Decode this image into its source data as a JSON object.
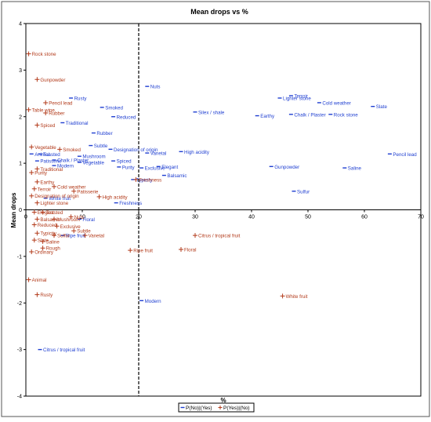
{
  "chart_data": {
    "type": "scatter",
    "title": "Mean drops vs %",
    "xlabel": "%",
    "ylabel": "Mean drops",
    "xlim": [
      0,
      70
    ],
    "ylim": [
      -4,
      4
    ],
    "xticks": [
      0,
      10,
      20,
      30,
      40,
      50,
      60,
      70
    ],
    "yticks": [
      -4,
      -3,
      -2,
      -1,
      0,
      1,
      2,
      3,
      4
    ],
    "grid": false,
    "vertical_reference_line": {
      "x": 20,
      "style": "dashed"
    },
    "legend_placement": "bottom-center",
    "series": [
      {
        "name": "P(No)|(Yes)",
        "color": "#1f3fd1",
        "marker": "dash",
        "points": [
          {
            "label": "Terroir",
            "x": 47.0,
            "y": 2.45
          },
          {
            "label": "Nuts",
            "x": 21.5,
            "y": 2.65
          },
          {
            "label": "Rusty",
            "x": 8.0,
            "y": 2.4
          },
          {
            "label": "Lighter stone",
            "x": 45.0,
            "y": 2.4
          },
          {
            "label": "Cold weather",
            "x": 52.0,
            "y": 2.3
          },
          {
            "label": "Slate",
            "x": 61.5,
            "y": 2.22
          },
          {
            "label": "Smoked",
            "x": 13.5,
            "y": 2.2
          },
          {
            "label": "Silex / shale",
            "x": 30.0,
            "y": 2.1
          },
          {
            "label": "Reduced",
            "x": 15.5,
            "y": 2.0
          },
          {
            "label": "Earthy",
            "x": 41.0,
            "y": 2.02
          },
          {
            "label": "Chalk / Plaster",
            "x": 47.0,
            "y": 2.05
          },
          {
            "label": "Rock stone",
            "x": 54.0,
            "y": 2.05
          },
          {
            "label": "Traditional",
            "x": 6.5,
            "y": 1.87
          },
          {
            "label": "Rubber",
            "x": 12.0,
            "y": 1.65
          },
          {
            "label": "Subtle",
            "x": 11.5,
            "y": 1.38
          },
          {
            "label": "Designation of origin",
            "x": 15.0,
            "y": 1.3
          },
          {
            "label": "High acidity",
            "x": 27.5,
            "y": 1.25
          },
          {
            "label": "Vanetal",
            "x": 21.5,
            "y": 1.22
          },
          {
            "label": "Pencil lead",
            "x": 64.5,
            "y": 1.2
          },
          {
            "label": "Animal",
            "x": 1.0,
            "y": 1.2
          },
          {
            "label": "Toasted",
            "x": 2.5,
            "y": 1.2
          },
          {
            "label": "Mushroom",
            "x": 9.5,
            "y": 1.15
          },
          {
            "label": "Patisserie",
            "x": 2.0,
            "y": 1.05
          },
          {
            "label": "Chalk / Plaster",
            "x": 5.0,
            "y": 1.07
          },
          {
            "label": "Vegetable",
            "x": 9.5,
            "y": 1.02
          },
          {
            "label": "Spiced",
            "x": 15.5,
            "y": 1.05
          },
          {
            "label": "Modern",
            "x": 5.0,
            "y": 0.95
          },
          {
            "label": "Purity",
            "x": 16.5,
            "y": 0.92
          },
          {
            "label": "Elegant",
            "x": 23.5,
            "y": 0.93
          },
          {
            "label": "Gunpowder",
            "x": 43.5,
            "y": 0.93
          },
          {
            "label": "Saline",
            "x": 56.5,
            "y": 0.9
          },
          {
            "label": "Exclusive",
            "x": 20.5,
            "y": 0.9
          },
          {
            "label": "Balsamic",
            "x": 24.5,
            "y": 0.74
          },
          {
            "label": "Typicity",
            "x": 19.0,
            "y": 0.65
          },
          {
            "label": "Sulfur",
            "x": 47.5,
            "y": 0.4
          },
          {
            "label": "White fruit",
            "x": 3.5,
            "y": 0.25
          },
          {
            "label": "Freshness",
            "x": 16.0,
            "y": 0.15
          },
          {
            "label": "Floral",
            "x": 9.5,
            "y": -0.2
          },
          {
            "label": "Ripe fruit",
            "x": 6.5,
            "y": -0.55
          },
          {
            "label": "Modern",
            "x": 20.5,
            "y": -1.95
          },
          {
            "label": "Citrus / tropical fruit",
            "x": 2.5,
            "y": -3.0
          }
        ]
      },
      {
        "name": "P(Yes)|(No)",
        "color": "#b23a1a",
        "marker": "cross",
        "points": [
          {
            "label": "Rock stone",
            "x": 0.5,
            "y": 3.35
          },
          {
            "label": "Gunpowder",
            "x": 2.0,
            "y": 2.8
          },
          {
            "label": "Pencil lead",
            "x": 3.5,
            "y": 2.3
          },
          {
            "label": "Table wine",
            "x": 0.5,
            "y": 2.15
          },
          {
            "label": "Rubber",
            "x": 3.5,
            "y": 2.08
          },
          {
            "label": "Spiced",
            "x": 2.0,
            "y": 1.82
          },
          {
            "label": "Vegetable",
            "x": 1.0,
            "y": 1.35
          },
          {
            "label": "Smoked",
            "x": 6.0,
            "y": 1.3
          },
          {
            "label": "Traditional",
            "x": 2.0,
            "y": 0.88
          },
          {
            "label": "Purity",
            "x": 1.0,
            "y": 0.8
          },
          {
            "label": "Earthy",
            "x": 2.0,
            "y": 0.6
          },
          {
            "label": "Cold weather",
            "x": 5.0,
            "y": 0.5
          },
          {
            "label": "Terroir",
            "x": 1.5,
            "y": 0.45
          },
          {
            "label": "Patisserie",
            "x": 8.5,
            "y": 0.4
          },
          {
            "label": "Designation of origin",
            "x": 1.0,
            "y": 0.3
          },
          {
            "label": "High acidity",
            "x": 13.0,
            "y": 0.28
          },
          {
            "label": "Freshness",
            "x": 19.5,
            "y": 0.65
          },
          {
            "label": "Lighter stone",
            "x": 2.0,
            "y": 0.15
          },
          {
            "label": "Elegant",
            "x": 1.5,
            "y": -0.05
          },
          {
            "label": "Toasted",
            "x": 3.0,
            "y": -0.05
          },
          {
            "label": "Balsamic",
            "x": 2.0,
            "y": -0.2
          },
          {
            "label": "Mushroom",
            "x": 5.0,
            "y": -0.2
          },
          {
            "label": "Nuts",
            "x": 8.0,
            "y": -0.15
          },
          {
            "label": "Reduced",
            "x": 1.5,
            "y": -0.32
          },
          {
            "label": "Exclusive",
            "x": 5.5,
            "y": -0.35
          },
          {
            "label": "Subtle",
            "x": 8.5,
            "y": -0.45
          },
          {
            "label": "Typicity",
            "x": 2.0,
            "y": -0.5
          },
          {
            "label": "Sulfur",
            "x": 5.0,
            "y": -0.55
          },
          {
            "label": "Vanetal",
            "x": 10.5,
            "y": -0.55
          },
          {
            "label": "Slate",
            "x": 1.5,
            "y": -0.65
          },
          {
            "label": "Saline",
            "x": 3.0,
            "y": -0.68
          },
          {
            "label": "Citrus / tropical fruit",
            "x": 30.0,
            "y": -0.55
          },
          {
            "label": "Rough",
            "x": 3.0,
            "y": -0.82
          },
          {
            "label": "Ordinary",
            "x": 1.0,
            "y": -0.9
          },
          {
            "label": "Floral",
            "x": 27.5,
            "y": -0.85
          },
          {
            "label": "Ripe fruit",
            "x": 18.5,
            "y": -0.87
          },
          {
            "label": "Animal",
            "x": 0.5,
            "y": -1.5
          },
          {
            "label": "Rusty",
            "x": 2.0,
            "y": -1.82
          },
          {
            "label": "White fruit",
            "x": 45.5,
            "y": -1.85
          }
        ]
      }
    ]
  }
}
